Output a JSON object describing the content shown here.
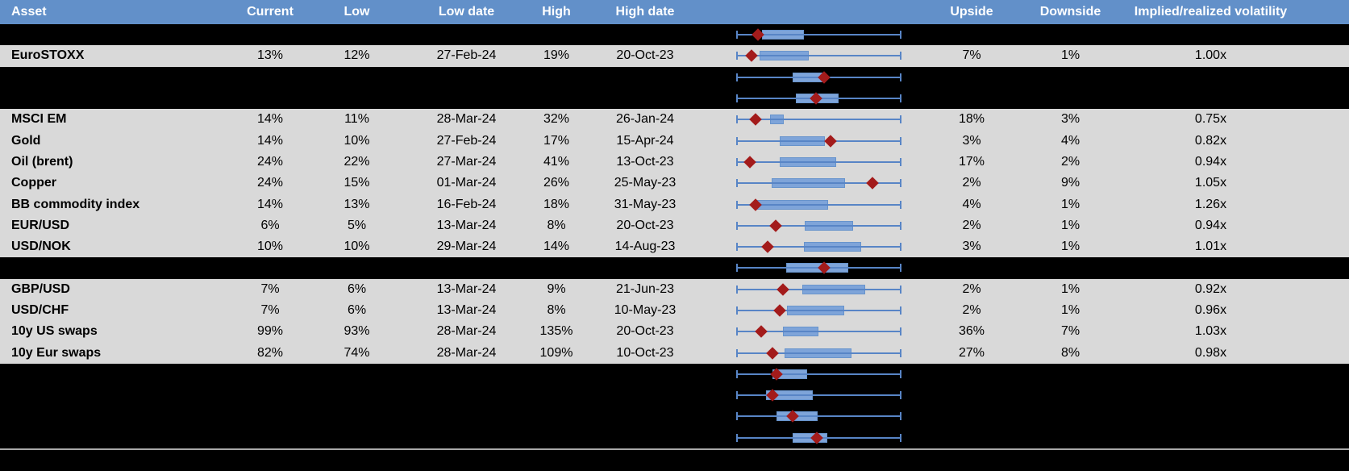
{
  "colors": {
    "header_bg": "#6290c9",
    "header_text": "#ffffff",
    "data_row_bg": "#d9d9d9",
    "hidden_row_bg": "#000000",
    "text": "#000000",
    "whisker_blue": "#5885c6",
    "box_fill_blue": "#7ea4d9",
    "box_border_blue": "#6894cc",
    "marker_red": "#a31b1b",
    "bottom_separator": "#a9a9a9"
  },
  "chart_data": {
    "type": "table",
    "description_of_plot_column": "horizontal box-whisker per row, whiskers span full range, red diamond = current level, positions given as fraction 0-1 of plot width",
    "columns": [
      "Asset",
      "Current",
      "Low",
      "Low date",
      "High",
      "High date",
      "",
      "Upside",
      "Downside",
      "Implied/realized volatility"
    ],
    "rows": [
      {
        "type": "spacer",
        "plot": {
          "box_lo": 0.156,
          "box_hi": 0.41,
          "marker": 0.132
        }
      },
      {
        "type": "data",
        "asset": "EuroSTOXX",
        "current": "13%",
        "low": "12%",
        "low_date": "27-Feb-24",
        "high": "19%",
        "high_date": "20-Oct-23",
        "upside": "7%",
        "downside": "1%",
        "implied": "1.00x",
        "plot": {
          "box_lo": 0.141,
          "box_hi": 0.439,
          "marker": 0.093
        }
      },
      {
        "type": "spacer",
        "plot": {
          "box_lo": 0.341,
          "box_hi": 0.537,
          "marker": 0.532
        }
      },
      {
        "type": "spacer",
        "plot": {
          "box_lo": 0.361,
          "box_hi": 0.62,
          "marker": 0.483
        }
      },
      {
        "type": "data",
        "asset": "MSCI EM",
        "current": "14%",
        "low": "11%",
        "low_date": "28-Mar-24",
        "high": "32%",
        "high_date": "26-Jan-24",
        "upside": "18%",
        "downside": "3%",
        "implied": "0.75x",
        "plot": {
          "box_lo": 0.205,
          "box_hi": 0.288,
          "marker": 0.117
        }
      },
      {
        "type": "data",
        "asset": "Gold",
        "current": "14%",
        "low": "10%",
        "low_date": "27-Feb-24",
        "high": "17%",
        "high_date": "15-Apr-24",
        "upside": "3%",
        "downside": "4%",
        "implied": "0.82x",
        "plot": {
          "box_lo": 0.263,
          "box_hi": 0.537,
          "marker": 0.571
        }
      },
      {
        "type": "data",
        "asset": "Oil (brent)",
        "current": "24%",
        "low": "22%",
        "low_date": "27-Mar-24",
        "high": "41%",
        "high_date": "13-Oct-23",
        "upside": "17%",
        "downside": "2%",
        "implied": "0.94x",
        "plot": {
          "box_lo": 0.263,
          "box_hi": 0.605,
          "marker": 0.083
        }
      },
      {
        "type": "data",
        "asset": "Copper",
        "current": "24%",
        "low": "15%",
        "low_date": "01-Mar-24",
        "high": "26%",
        "high_date": "25-May-23",
        "upside": "2%",
        "downside": "9%",
        "implied": "1.05x",
        "plot": {
          "box_lo": 0.215,
          "box_hi": 0.659,
          "marker": 0.824
        }
      },
      {
        "type": "data",
        "asset": "BB commodity index",
        "current": "14%",
        "low": "13%",
        "low_date": "16-Feb-24",
        "high": "18%",
        "high_date": "31-May-23",
        "upside": "4%",
        "downside": "1%",
        "implied": "1.26x",
        "plot": {
          "box_lo": 0.122,
          "box_hi": 0.556,
          "marker": 0.117
        }
      },
      {
        "type": "data",
        "asset": "EUR/USD",
        "current": "6%",
        "low": "5%",
        "low_date": "13-Mar-24",
        "high": "8%",
        "high_date": "20-Oct-23",
        "upside": "2%",
        "downside": "1%",
        "implied": "0.94x",
        "plot": {
          "box_lo": 0.415,
          "box_hi": 0.707,
          "marker": 0.239
        }
      },
      {
        "type": "data",
        "asset": "USD/NOK",
        "current": "10%",
        "low": "10%",
        "low_date": "29-Mar-24",
        "high": "14%",
        "high_date": "14-Aug-23",
        "upside": "3%",
        "downside": "1%",
        "implied": "1.01x",
        "plot": {
          "box_lo": 0.41,
          "box_hi": 0.756,
          "marker": 0.19
        }
      },
      {
        "type": "spacer",
        "plot": {
          "box_lo": 0.302,
          "box_hi": 0.678,
          "marker": 0.532
        }
      },
      {
        "type": "data",
        "asset": "GBP/USD",
        "current": "7%",
        "low": "6%",
        "low_date": "13-Mar-24",
        "high": "9%",
        "high_date": "21-Jun-23",
        "upside": "2%",
        "downside": "1%",
        "implied": "0.92x",
        "plot": {
          "box_lo": 0.4,
          "box_hi": 0.78,
          "marker": 0.283
        }
      },
      {
        "type": "data",
        "asset": "USD/CHF",
        "current": "7%",
        "low": "6%",
        "low_date": "13-Mar-24",
        "high": "8%",
        "high_date": "10-May-23",
        "upside": "2%",
        "downside": "1%",
        "implied": "0.96x",
        "plot": {
          "box_lo": 0.307,
          "box_hi": 0.654,
          "marker": 0.263
        }
      },
      {
        "type": "data",
        "asset": "10y US swaps",
        "current": "99%",
        "low": "93%",
        "low_date": "28-Mar-24",
        "high": "135%",
        "high_date": "20-Oct-23",
        "upside": "36%",
        "downside": "7%",
        "implied": "1.03x",
        "plot": {
          "box_lo": 0.283,
          "box_hi": 0.498,
          "marker": 0.151
        }
      },
      {
        "type": "data",
        "asset": "10y Eur swaps",
        "current": "82%",
        "low": "74%",
        "low_date": "28-Mar-24",
        "high": "109%",
        "high_date": "10-Oct-23",
        "upside": "27%",
        "downside": "8%",
        "implied": "0.98x",
        "plot": {
          "box_lo": 0.293,
          "box_hi": 0.698,
          "marker": 0.22
        }
      },
      {
        "type": "spacer",
        "plot": {
          "box_lo": 0.22,
          "box_hi": 0.429,
          "marker": 0.244
        }
      },
      {
        "type": "spacer",
        "plot": {
          "box_lo": 0.18,
          "box_hi": 0.463,
          "marker": 0.22
        }
      },
      {
        "type": "spacer",
        "plot": {
          "box_lo": 0.244,
          "box_hi": 0.493,
          "marker": 0.341
        }
      },
      {
        "type": "spacer",
        "plot": {
          "box_lo": 0.341,
          "box_hi": 0.551,
          "marker": 0.488
        }
      }
    ]
  }
}
